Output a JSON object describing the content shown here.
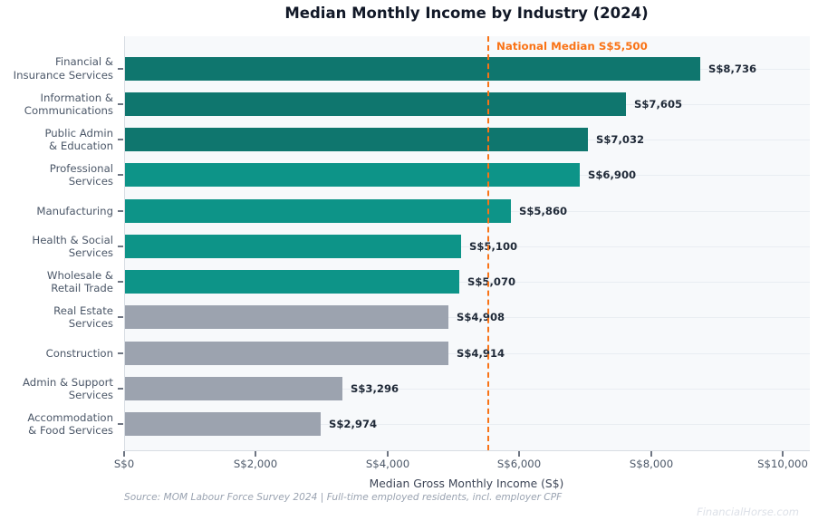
{
  "title": "Median Monthly Income by Industry (2024)",
  "chart_data": {
    "type": "bar",
    "orientation": "horizontal",
    "title": "Median Monthly Income by Industry (2024)",
    "categories": [
      "Financial &\nInsurance Services",
      "Information &\nCommunications",
      "Public Admin\n& Education",
      "Professional\nServices",
      "Manufacturing",
      "Health & Social\nServices",
      "Wholesale &\nRetail Trade",
      "Real Estate\nServices",
      "Construction",
      "Admin & Support\nServices",
      "Accommodation\n& Food Services"
    ],
    "values": [
      8736,
      7605,
      7032,
      6900,
      5860,
      5100,
      5070,
      4908,
      4914,
      3296,
      2974
    ],
    "value_labels": [
      "S$8,736",
      "S$7,605",
      "S$7,032",
      "S$6,900",
      "S$5,860",
      "S$5,100",
      "S$5,070",
      "S$4,908",
      "S$4,914",
      "S$3,296",
      "S$2,974"
    ],
    "bar_colors": [
      "#0f766e",
      "#0f766e",
      "#0f766e",
      "#0d9488",
      "#0d9488",
      "#0d9488",
      "#0d9488",
      "#9ca3af",
      "#9ca3af",
      "#9ca3af",
      "#9ca3af"
    ],
    "xlabel": "Median Gross Monthly Income (S$)",
    "ylabel": "",
    "xlim": [
      0,
      10400
    ],
    "xticks": [
      0,
      2000,
      4000,
      6000,
      8000,
      10000
    ],
    "xtick_labels": [
      "S$0",
      "S$2,000",
      "S$4,000",
      "S$6,000",
      "S$8,000",
      "S$10,000"
    ],
    "grid": "horizontal gridline at each category center",
    "legend": "none",
    "reference_line": {
      "value": 5500,
      "label": "National Median S$5,500",
      "color": "#f97316",
      "style": "dashed"
    }
  },
  "footer": {
    "source": "Source: MOM Labour Force Survey 2024 | Full-time employed residents, incl. employer CPF",
    "watermark": "FinancialHorse.com"
  },
  "colors": {
    "dark_teal": "#0f766e",
    "teal": "#0d9488",
    "gray": "#9ca3af",
    "accent_orange": "#f97316",
    "plot_background": "#f7f9fb",
    "page_background": "#ffffff"
  }
}
